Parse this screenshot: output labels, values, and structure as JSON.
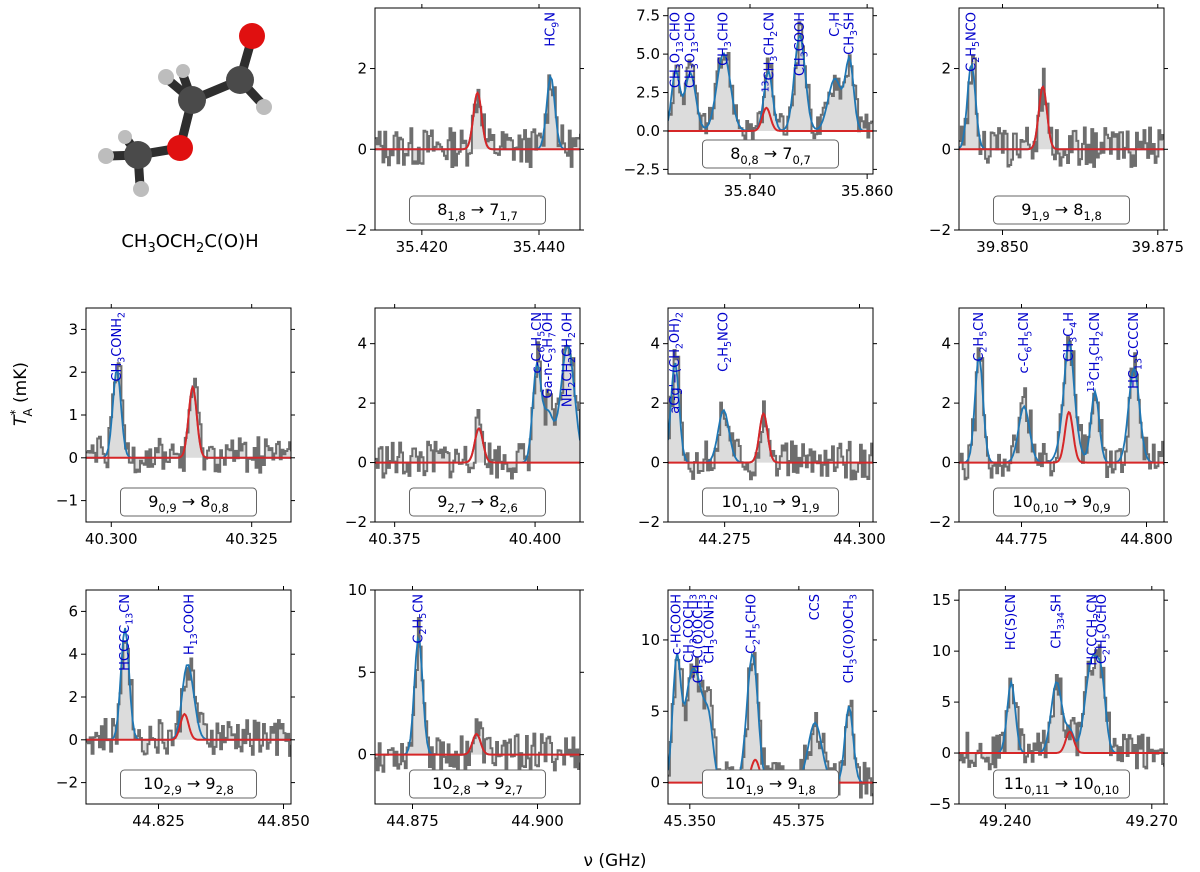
{
  "figure": {
    "ylabel": "T*A (mK)",
    "xlabel": "ν (GHz)",
    "molecule_label": "CH3OCH2C(O)H",
    "colors": {
      "observed": "#6e6e6e",
      "fill": "#dcdcdc",
      "model": "#d62728",
      "total": "#1f77b4",
      "species": "#0000cc"
    }
  },
  "chart_data": [
    {
      "type": "line",
      "transition": "8(1,8) → 7(1,7)",
      "xlim": [
        35.412,
        35.447
      ],
      "xticks": [
        "35.420",
        "35.440"
      ],
      "ylim": [
        -2,
        3.5
      ],
      "yticks": [
        "−2",
        "0",
        "2"
      ],
      "model": {
        "center": 35.4295,
        "height": 1.4
      },
      "labels": [
        {
          "x": 35.442,
          "text": "HC9N"
        }
      ]
    },
    {
      "type": "line",
      "transition": "8(0,8) → 7(0,7)",
      "xlim": [
        35.826,
        35.861
      ],
      "xticks": [
        "35.840",
        "35.860"
      ],
      "ylim": [
        -2.8,
        8.0
      ],
      "yticks": [
        "−2.5",
        "0.0",
        "2.5",
        "5.0",
        "7.5"
      ],
      "model": {
        "center": 35.8428,
        "height": 1.5
      },
      "labels": [
        {
          "x": 35.8273,
          "text": "CH3O13CHO"
        },
        {
          "x": 35.8298,
          "text": "CH3O13CHO"
        },
        {
          "x": 35.8355,
          "text": "CH3CHO"
        },
        {
          "x": 35.8433,
          "text": "13CH3CH2CN"
        },
        {
          "x": 35.8485,
          "text": "CH3COOH"
        },
        {
          "x": 35.8545,
          "text": "C7H"
        },
        {
          "x": 35.857,
          "text": "CH3SH"
        }
      ]
    },
    {
      "type": "line",
      "transition": "9(1,9) → 8(1,8)",
      "xlim": [
        39.843,
        39.876
      ],
      "xticks": [
        "39.850",
        "39.875"
      ],
      "ylim": [
        -2,
        3.5
      ],
      "yticks": [
        "−2",
        "0",
        "2"
      ],
      "model": {
        "center": 39.8565,
        "height": 1.55
      },
      "labels": [
        {
          "x": 39.845,
          "text": "C2H5NCO"
        }
      ]
    },
    {
      "type": "line",
      "transition": "9(0,9) → 8(0,8)",
      "xlim": [
        40.2955,
        40.332
      ],
      "xticks": [
        "40.300",
        "40.325"
      ],
      "ylim": [
        -1.5,
        3.5
      ],
      "yticks": [
        "−1",
        "0",
        "1",
        "2",
        "3"
      ],
      "model": {
        "center": 40.3145,
        "height": 1.65
      },
      "labels": [
        {
          "x": 40.301,
          "text": "CH3CONH2"
        }
      ]
    },
    {
      "type": "line",
      "transition": "9(2,7) → 8(2,6)",
      "xlim": [
        40.3715,
        40.408
      ],
      "xticks": [
        "40.375",
        "40.400"
      ],
      "ylim": [
        -2,
        5.2
      ],
      "yticks": [
        "−2",
        "0",
        "2",
        "4"
      ],
      "model": {
        "center": 40.39,
        "height": 1.15
      },
      "labels": [
        {
          "x": 40.4003,
          "text": "c-C6H5CN"
        },
        {
          "x": 40.4023,
          "text": "Ga-n-C3H7OH"
        },
        {
          "x": 40.4058,
          "text": "NH2CH2CH2OH"
        }
      ]
    },
    {
      "type": "line",
      "transition": "10(1,10) → 9(1,9)",
      "xlim": [
        44.2645,
        44.3025
      ],
      "xticks": [
        "44.275",
        "44.300"
      ],
      "ylim": [
        -2,
        5.2
      ],
      "yticks": [
        "−2",
        "0",
        "2",
        "4"
      ],
      "model": {
        "center": 44.2822,
        "height": 1.65
      },
      "labels": [
        {
          "x": 44.2658,
          "text": "aGg'−(CH2OH)2"
        },
        {
          "x": 44.2748,
          "text": "C2H5NCO"
        }
      ]
    },
    {
      "type": "line",
      "transition": "10(0,10) → 9(0,9)",
      "xlim": [
        44.7625,
        44.8035
      ],
      "xticks": [
        "44.775",
        "44.800"
      ],
      "ylim": [
        -2,
        5.2
      ],
      "yticks": [
        "−2",
        "0",
        "2",
        "4"
      ],
      "model": {
        "center": 44.7845,
        "height": 1.7
      },
      "labels": [
        {
          "x": 44.7665,
          "text": "C2H5CN"
        },
        {
          "x": 44.7755,
          "text": "c-C6H5CN"
        },
        {
          "x": 44.7845,
          "text": "CH3C4H"
        },
        {
          "x": 44.7897,
          "text": "13CH3CH2CN"
        },
        {
          "x": 44.7975,
          "text": "HC13CCCCN"
        }
      ]
    },
    {
      "type": "line",
      "transition": "10(2,9) → 9(2,8)",
      "xlim": [
        44.8105,
        44.8515
      ],
      "xticks": [
        "44.825",
        "44.850"
      ],
      "ylim": [
        -3,
        7
      ],
      "yticks": [
        "−2",
        "0",
        "2",
        "4",
        "6"
      ],
      "model": {
        "center": 44.8302,
        "height": 1.2
      },
      "labels": [
        {
          "x": 44.8183,
          "text": "HCCCC13CN"
        },
        {
          "x": 44.8312,
          "text": "H13COOH"
        }
      ]
    },
    {
      "type": "line",
      "transition": "10(2,8) → 9(2,7)",
      "xlim": [
        44.8675,
        44.9085
      ],
      "xticks": [
        "44.875",
        "44.900"
      ],
      "ylim": [
        -3,
        10
      ],
      "yticks": [
        "0",
        "5",
        "10"
      ],
      "model": {
        "center": 44.8878,
        "height": 1.25
      },
      "labels": [
        {
          "x": 44.8762,
          "text": "C2H5CN"
        }
      ]
    },
    {
      "type": "line",
      "transition": "10(1,9) → 9(1,8)",
      "xlim": [
        45.345,
        45.392
      ],
      "xticks": [
        "45.350",
        "45.375"
      ],
      "ylim": [
        -1.5,
        13.5
      ],
      "yticks": [
        "0",
        "5",
        "10"
      ],
      "model": {
        "center": 45.365,
        "height": 1.6
      },
      "labels": [
        {
          "x": 45.347,
          "text": "c-HCOOH"
        },
        {
          "x": 45.3498,
          "text": "CH3COCH3"
        },
        {
          "x": 45.352,
          "text": "CH3C(O)OCH3"
        },
        {
          "x": 45.3545,
          "text": "CH3CONH2"
        },
        {
          "x": 45.3642,
          "text": "C2H5CHO"
        },
        {
          "x": 45.3787,
          "text": "CCS"
        },
        {
          "x": 45.3865,
          "text": "CH3C(O)OCH3"
        }
      ]
    },
    {
      "type": "line",
      "transition": "11(0,11) → 10(0,10)",
      "xlim": [
        49.2305,
        49.2725
      ],
      "xticks": [
        "49.240",
        "49.270"
      ],
      "ylim": [
        -5,
        16
      ],
      "yticks": [
        "−5",
        "0",
        "5",
        "10",
        "15"
      ],
      "model": {
        "center": 49.2532,
        "height": 2.1
      },
      "labels": [
        {
          "x": 49.2412,
          "text": "HC(S)CN"
        },
        {
          "x": 49.2505,
          "text": "CH334SH"
        },
        {
          "x": 49.2578,
          "text": "HCCCH2CN"
        },
        {
          "x": 49.2598,
          "text": "C2H5OCHO"
        }
      ]
    }
  ]
}
